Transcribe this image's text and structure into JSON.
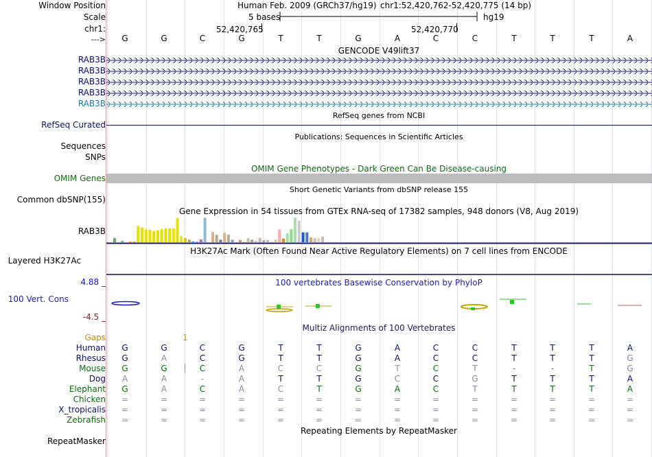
{
  "labels": {
    "window_position": "Window Position",
    "scale": "Scale",
    "chrom": "chr1:",
    "arrow": "--->",
    "gencode_genes": [
      "RAB3B",
      "RAB3B",
      "RAB3B",
      "RAB3B",
      "RAB3B"
    ],
    "refseq": "RefSeq Curated",
    "sequences": "Sequences",
    "snps": "SNPs",
    "omim": "OMIM Genes",
    "common_dbsnp": "Common dbSNP(155)",
    "gtex_gene": "RAB3B",
    "h3k27ac": "Layered H3K27Ac",
    "phylop_max": "4.88 _",
    "phylop_label": "100 Vert. Cons",
    "phylop_min": "-4.5 _",
    "gaps": "Gaps",
    "species": [
      "Human",
      "Rhesus",
      "Mouse",
      "Dog",
      "Elephant",
      "Chicken",
      "X_tropicalis",
      "Zebrafish"
    ],
    "repeatmasker": "RepeatMasker"
  },
  "header": {
    "assembly": "Human Feb. 2009 (GRCh37/hg19)",
    "position": "chr1:52,420,762-52,420,775 (14 bp)",
    "scale_text": "5 bases",
    "db": "hg19",
    "coord1": "52,420,765",
    "coord2": "52,420,770"
  },
  "bases": [
    "G",
    "G",
    "C",
    "G",
    "T",
    "T",
    "G",
    "A",
    "C",
    "C",
    "T",
    "T",
    "T",
    "A"
  ],
  "titles": {
    "gencode": "GENCODE V49lift37",
    "refseq": "RefSeq genes from NCBI",
    "publications": "Publications: Sequences in Scientific Articles",
    "omim": "OMIM Gene Phenotypes - Dark Green Can Be Disease-causing",
    "dbsnp": "Short Genetic Variants from dbSNP release 155",
    "gtex": "Gene Expression in 54 tissues from GTEx RNA-seq of 17382 samples, 948 donors (V8, Aug 2019)",
    "h3k27ac": "H3K27Ac Mark (Often Found Near Active Regulatory Elements) on 7 cell lines from ENCODE",
    "phylop": "100 vertebrates Basewise Conservation by PhyloP",
    "multiz": "Multiz Alignments of 100 Vertebrates",
    "repeat": "Repeating Elements by RepeatMasker"
  },
  "gap_marker": "1",
  "alignments": [
    [
      "G",
      "G",
      "C",
      "G",
      "T",
      "T",
      "G",
      "A",
      "C",
      "C",
      "T",
      "T",
      "T",
      "A"
    ],
    [
      "G",
      "A",
      "C",
      "G",
      "T",
      "T",
      "G",
      "A",
      "C",
      "C",
      "T",
      "T",
      "T",
      "G"
    ],
    [
      "G",
      "G",
      "C",
      "A",
      "C",
      "C",
      "G",
      "T",
      "C",
      "T",
      "-",
      "-",
      "T",
      "G"
    ],
    [
      "A",
      "A",
      "-",
      "A",
      "T",
      "T",
      "G",
      "C",
      "C",
      "G",
      "T",
      "T",
      "T",
      "A"
    ],
    [
      "G",
      "A",
      "C",
      "A",
      "C",
      "T",
      "G",
      "A",
      "C",
      "T",
      "T",
      "T",
      "T",
      "A"
    ],
    [
      "=",
      "=",
      "=",
      "=",
      "=",
      "=",
      "=",
      "=",
      "=",
      "=",
      "=",
      "=",
      "=",
      "="
    ],
    [
      "=",
      "=",
      "=",
      "=",
      "=",
      "=",
      "=",
      "=",
      "=",
      "=",
      "=",
      "=",
      "=",
      "="
    ],
    [
      "=",
      "=",
      "=",
      "=",
      "=",
      "=",
      "=",
      "=",
      "=",
      "=",
      "=",
      "=",
      "=",
      "="
    ]
  ],
  "gtex_levels": [
    0.17,
    0,
    0.06,
    0,
    0.02,
    0.03,
    0.66,
    0.6,
    0.52,
    0.5,
    0.46,
    0.49,
    0.53,
    0.56,
    0.56,
    0.56,
    0.99,
    0.26,
    0.17,
    0.1,
    0.02,
    0.03,
    0.11,
    0.99,
    0,
    0.41,
    0.3,
    0.1,
    0.38,
    0.31,
    0.1,
    0,
    0.09,
    0.01,
    0.16,
    0.1,
    0.06,
    0.18,
    0.08,
    0.09,
    0.04,
    0.1,
    0.52,
    0.15,
    0.36,
    0.53,
    1,
    0.87,
    0.4,
    0.4,
    0.2,
    0.17,
    0.16,
    0.23
  ],
  "colors": {
    "gene_dark": "#0c0c78",
    "gene_light": "#1b7aa8",
    "omim": "#0a6f0a",
    "gaps": "#d08a00",
    "phylop_pos": "#22cc22",
    "phylop_neg": "#c8a000",
    "blue_cons": "#1818d0",
    "maroon": "#8b2222"
  }
}
